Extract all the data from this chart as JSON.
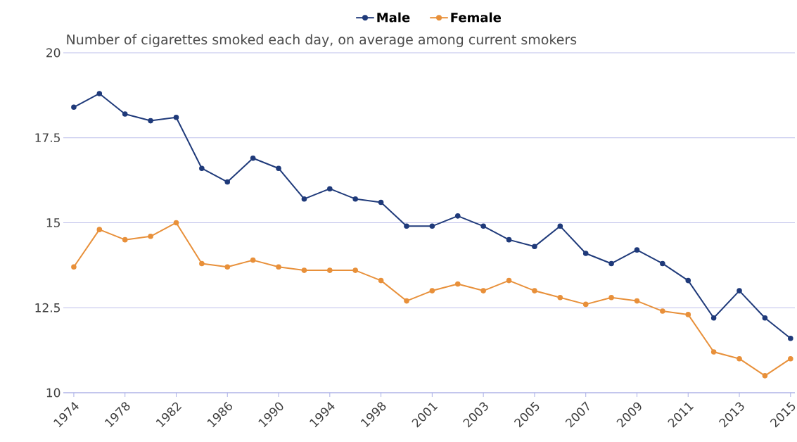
{
  "chart_data": {
    "type": "line",
    "title": "Number of cigarettes smoked each day, on average among current smokers",
    "categories": [
      "1974",
      null,
      "1978",
      null,
      "1982",
      null,
      "1986",
      null,
      "1990",
      null,
      "1994",
      null,
      "1998",
      null,
      "2001",
      null,
      "2003",
      null,
      "2005",
      null,
      "2007",
      null,
      "2009",
      null,
      "2011",
      null,
      "2013",
      null,
      "2015"
    ],
    "series": [
      {
        "name": "Male",
        "color": "#1f3a7a",
        "values": [
          18.4,
          18.8,
          18.2,
          18.0,
          18.1,
          16.6,
          16.2,
          16.9,
          16.6,
          15.7,
          16.0,
          15.7,
          15.6,
          14.9,
          14.9,
          15.2,
          14.9,
          14.5,
          14.3,
          14.9,
          14.1,
          13.8,
          14.2,
          13.8,
          13.3,
          12.2,
          13.0,
          12.2,
          11.6
        ]
      },
      {
        "name": "Female",
        "color": "#e8903a",
        "values": [
          13.7,
          14.8,
          14.5,
          14.6,
          15.0,
          13.8,
          13.7,
          13.9,
          13.7,
          13.6,
          13.6,
          13.6,
          13.3,
          12.7,
          13.0,
          13.2,
          13.0,
          13.3,
          13.0,
          12.8,
          12.6,
          12.8,
          12.7,
          12.4,
          12.3,
          11.2,
          11.0,
          10.5,
          11.0
        ]
      }
    ],
    "ylim": [
      10,
      20
    ],
    "yticks": [
      10,
      12.5,
      15,
      17.5,
      20
    ],
    "grid": "y",
    "legend": "top",
    "marker": "circle",
    "line_style": "solid"
  }
}
